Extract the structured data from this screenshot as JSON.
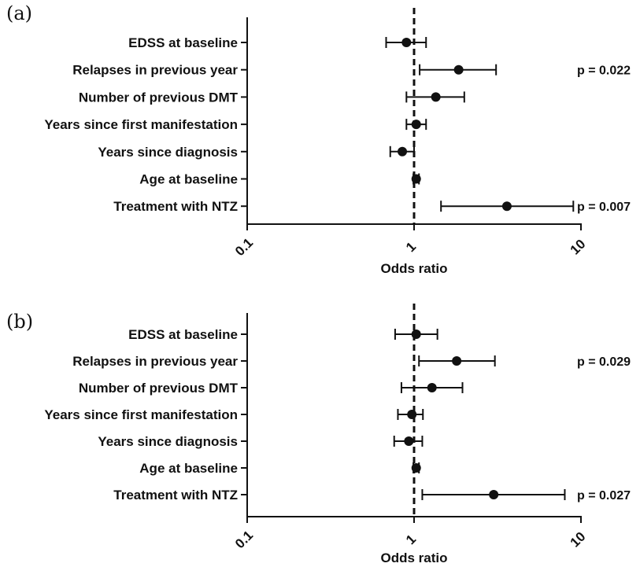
{
  "chart_data": [
    {
      "type": "forest",
      "panel_label": "(a)",
      "xlabel": "Odds ratio",
      "x_scale": "log",
      "xlim": [
        0.1,
        10
      ],
      "x_ticks": [
        "0.1",
        "1",
        "10"
      ],
      "reference_line": 1,
      "categories": [
        "EDSS at baseline",
        "Relapses in previous year",
        "Number of previous DMT",
        "Years since first manifestation",
        "Years since diagnosis",
        "Age at baseline",
        "Treatment with NTZ"
      ],
      "estimates": [
        0.9,
        1.85,
        1.35,
        1.03,
        0.85,
        1.03,
        3.6
      ],
      "ci_low": [
        0.68,
        1.08,
        0.9,
        0.9,
        0.72,
        0.99,
        1.45
      ],
      "ci_high": [
        1.18,
        3.1,
        2.0,
        1.18,
        1.0,
        1.07,
        9.0
      ],
      "p_values": [
        "",
        "p = 0.022",
        "",
        "",
        "",
        "",
        "p = 0.007"
      ]
    },
    {
      "type": "forest",
      "panel_label": "(b)",
      "xlabel": "Odds ratio",
      "x_scale": "log",
      "xlim": [
        0.1,
        10
      ],
      "x_ticks": [
        "0.1",
        "1",
        "10"
      ],
      "reference_line": 1,
      "categories": [
        "EDSS at baseline",
        "Relapses in previous year",
        "Number of previous DMT",
        "Years since first manifestation",
        "Years since diagnosis",
        "Age at baseline",
        "Treatment with NTZ"
      ],
      "estimates": [
        1.03,
        1.8,
        1.28,
        0.97,
        0.93,
        1.03,
        3.0
      ],
      "ci_low": [
        0.77,
        1.07,
        0.84,
        0.8,
        0.76,
        0.99,
        1.12
      ],
      "ci_high": [
        1.38,
        3.05,
        1.95,
        1.13,
        1.12,
        1.07,
        8.0
      ],
      "p_values": [
        "",
        "p = 0.029",
        "",
        "",
        "",
        "",
        "p = 0.027"
      ]
    }
  ]
}
